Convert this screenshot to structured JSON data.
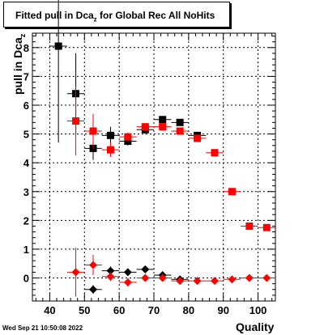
{
  "title": {
    "main": "Fitted pull in Dca",
    "sub": "z",
    "tail": " for Global Rec All NoHits"
  },
  "ylabel": {
    "main": "pull in Dca",
    "sub": "z"
  },
  "xlabel": "Quality",
  "timestamp": "Wed Sep 21 10:50:08 2022",
  "colors": {
    "black_series": "#000000",
    "red_series": "#ff0000",
    "grid": "#000000"
  },
  "chart_data": {
    "type": "scatter",
    "title": "Fitted pull in Dcaz for Global Rec All NoHits",
    "xlabel": "Quality",
    "ylabel": "pull in Dcaz",
    "xlim": [
      35,
      105
    ],
    "ylim": [
      -0.8,
      8.5
    ],
    "xticks": [
      40,
      50,
      60,
      70,
      80,
      90,
      100
    ],
    "yticks": [
      0,
      1,
      2,
      3,
      4,
      5,
      6,
      7,
      8
    ],
    "grid": true,
    "series": [
      {
        "marker": "square",
        "color": "#000000",
        "x": [
          42.5,
          47.5,
          52.5,
          57.5,
          62.5,
          67.5,
          72.5,
          77.5,
          82.5
        ],
        "y": [
          8.05,
          6.4,
          4.5,
          4.95,
          4.75,
          5.15,
          5.5,
          5.4,
          4.95
        ],
        "yerr": [
          3.35,
          1.4,
          0.4,
          0.3,
          0.15,
          0.15,
          0.1,
          0.1,
          0.1
        ]
      },
      {
        "marker": "square",
        "color": "#ff0000",
        "x": [
          47.5,
          52.5,
          57.5,
          62.5,
          67.5,
          72.5,
          77.5,
          82.5,
          87.5,
          92.5,
          97.5,
          102.5
        ],
        "y": [
          5.45,
          5.1,
          4.45,
          4.9,
          5.25,
          5.25,
          5.1,
          4.85,
          4.35,
          3.0,
          1.8,
          1.75
        ],
        "yerr": [
          1.2,
          0.6,
          0.25,
          0.15,
          0.1,
          0.1,
          0.1,
          0.1,
          0.05,
          0.05,
          0.05,
          0.05
        ]
      },
      {
        "marker": "diamond",
        "color": "#000000",
        "x": [
          52.5,
          57.5,
          62.5,
          67.5,
          72.5,
          77.5
        ],
        "y": [
          -0.4,
          0.25,
          0.2,
          0.3,
          0.1,
          -0.05
        ],
        "yerr": [
          0.15,
          0.15,
          0.1,
          0.1,
          0.05,
          0.05
        ]
      },
      {
        "marker": "diamond",
        "color": "#ff0000",
        "x": [
          47.5,
          52.5,
          57.5,
          62.5,
          67.5,
          72.5,
          77.5,
          82.5,
          87.5,
          92.5,
          97.5,
          102.5
        ],
        "y": [
          0.2,
          0.45,
          0.05,
          -0.15,
          0.0,
          0.0,
          -0.1,
          -0.1,
          -0.1,
          -0.05,
          0.0,
          0.0
        ],
        "yerr": [
          0.85,
          0.35,
          0.15,
          0.15,
          0.1,
          0.05,
          0.05,
          0.05,
          0.05,
          0.05,
          0.05,
          0.05
        ]
      }
    ]
  }
}
